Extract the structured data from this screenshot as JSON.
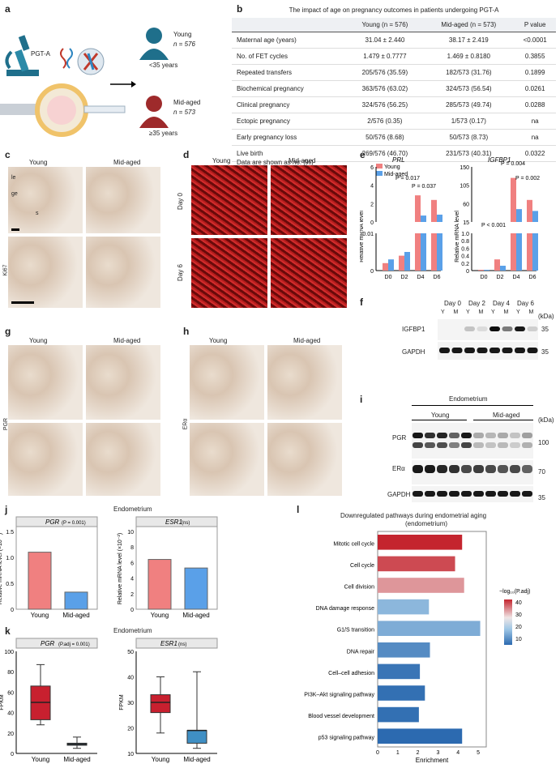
{
  "panels": {
    "a": "a",
    "b": "b",
    "c": "c",
    "d": "d",
    "e": "e",
    "f": "f",
    "g": "g",
    "h": "h",
    "i": "i",
    "j": "j",
    "k": "k",
    "l": "l"
  },
  "panel_a": {
    "method": "PGT-A",
    "young_label": "Young",
    "young_n": "n = 576",
    "young_age": "<35 years",
    "mid_label": "Mid-aged",
    "mid_n": "n = 573",
    "mid_age": "≥35 years"
  },
  "table_b": {
    "caption": "The impact of age on pregnancy outcomes in patients undergoing PGT-A",
    "headers": [
      "",
      "Young (n = 576)",
      "Mid-aged (n = 573)",
      "P value"
    ],
    "rows": [
      [
        "Maternal age (years)",
        "31.04 ± 2.440",
        "38.17 ± 2.419",
        "<0.0001"
      ],
      [
        "No. of FET cycles",
        "1.479 ± 0.7777",
        "1.469 ± 0.8180",
        "0.3855"
      ],
      [
        "Repeated transfers",
        "205/576 (35.59)",
        "182/573 (31.76)",
        "0.1899"
      ],
      [
        "Biochemical pregnancy",
        "363/576 (63.02)",
        "324/573 (56.54)",
        "0.0261"
      ],
      [
        "Clinical pregnancy",
        "324/576 (56.25)",
        "285/573 (49.74)",
        "0.0288"
      ],
      [
        "Ectopic pregnancy",
        "2/576 (0.35)",
        "1/573 (0.17)",
        "na"
      ],
      [
        "Early pregnancy loss",
        "50/576 (8.68)",
        "50/573 (8.73)",
        "na"
      ],
      [
        "Live birth",
        "269/576 (46.70)",
        "231/573 (40.31)",
        "0.0322"
      ]
    ],
    "footnote": "Data are shown as no. (%)"
  },
  "micro": {
    "young": "Young",
    "mid": "Mid-aged",
    "ki67": "Ki67",
    "pgr": "PGR",
    "era": "ERα",
    "le": "le",
    "ge": "ge",
    "s": "s",
    "day0": "Day 0",
    "day6": "Day 6"
  },
  "panel_e": {
    "prl_title": "PRL",
    "igf_title": "IGFBP1",
    "ylabel": "Relative mRNA level",
    "legend_young": "Young",
    "legend_mid": "Mid-aged",
    "x": [
      "D0",
      "D2",
      "D4",
      "D6"
    ],
    "prl_p1": "P = 0.017",
    "prl_p2": "P = 0.037",
    "igf_p1": "P < 0.001",
    "igf_p2": "P = 0.004",
    "igf_p3": "P = 0.002",
    "prl_ticks_top": [
      "6",
      "4",
      "2",
      "0"
    ],
    "prl_ticks_bottom": [
      "0.01",
      "0"
    ],
    "igf_ticks_top": [
      "150",
      "105",
      "60",
      "15"
    ],
    "igf_ticks_bottom": [
      "1.0",
      "0.8",
      "0.6",
      "0.4",
      "0.2",
      "0"
    ]
  },
  "panel_f": {
    "days": [
      "Day 0",
      "Day 2",
      "Day 4",
      "Day 6"
    ],
    "lanes": [
      "Y",
      "M",
      "Y",
      "M",
      "Y",
      "M",
      "Y",
      "M"
    ],
    "kda": "(kDa)",
    "rows": [
      "IGFBP1",
      "GAPDH"
    ],
    "markers": [
      "35",
      "35"
    ]
  },
  "panel_i": {
    "title": "Endometrium",
    "young": "Young",
    "mid": "Mid-aged",
    "kda": "(kDa)",
    "rows": [
      "PGR",
      "ERα",
      "GAPDH"
    ],
    "markers": [
      "100",
      "70",
      "35"
    ]
  },
  "panel_j": {
    "title": "Endometrium",
    "pgr_title": "PGR",
    "pgr_p": "(P = 0.001)",
    "esr_title": "ESR1",
    "esr_p": "(ns)",
    "ylabel_pgr": "Relative mRNA level (×10⁻¹)",
    "ylabel_esr": "Relative mRNA level (×10⁻²)",
    "x": [
      "Young",
      "Mid-aged"
    ],
    "pgr_ticks": [
      "1.5",
      "1.0",
      "0.5",
      "0"
    ],
    "esr_ticks": [
      "10",
      "8",
      "6",
      "4",
      "2",
      "0"
    ]
  },
  "panel_k": {
    "title": "Endometrium",
    "pgr_title": "PGR",
    "pgr_p": "(P.adj = 0.001)",
    "esr_title": "ESR1",
    "esr_p": "(ns)",
    "ylabel": "FPKM",
    "x": [
      "Young",
      "Mid-aged"
    ],
    "pgr_ticks": [
      "100",
      "80",
      "60",
      "40",
      "20",
      "0"
    ],
    "esr_ticks": [
      "50",
      "40",
      "30",
      "20",
      "10"
    ]
  },
  "chart_data": [
    {
      "type": "bar",
      "title": "PRL",
      "ylabel": "Relative mRNA level",
      "categories": [
        "D0",
        "D2",
        "D4",
        "D6"
      ],
      "series": [
        {
          "name": "Young",
          "values": [
            0.002,
            0.004,
            2.9,
            2.4
          ]
        },
        {
          "name": "Mid-aged",
          "values": [
            0.003,
            0.005,
            0.7,
            0.8
          ]
        }
      ]
    },
    {
      "type": "bar",
      "title": "IGFBP1",
      "ylabel": "Relative mRNA level",
      "categories": [
        "D0",
        "D2",
        "D4",
        "D6"
      ],
      "series": [
        {
          "name": "Young",
          "values": [
            0.01,
            0.3,
            120,
            60
          ]
        },
        {
          "name": "Mid-aged",
          "values": [
            0.01,
            0.13,
            35,
            30
          ]
        }
      ]
    },
    {
      "type": "bar",
      "title": "PGR",
      "ylabel": "Relative mRNA level (×10⁻¹)",
      "categories": [
        "Young",
        "Mid-aged"
      ],
      "values": [
        1.1,
        0.33
      ],
      "ylim": [
        0,
        1.5
      ]
    },
    {
      "type": "bar",
      "title": "ESR1",
      "ylabel": "Relative mRNA level (×10⁻²)",
      "categories": [
        "Young",
        "Mid-aged"
      ],
      "values": [
        6.4,
        5.3
      ],
      "ylim": [
        0,
        10
      ]
    },
    {
      "type": "box",
      "title": "PGR",
      "ylabel": "FPKM",
      "categories": [
        "Young",
        "Mid-aged"
      ],
      "boxes": [
        {
          "min": 28,
          "q1": 33,
          "median": 50,
          "q3": 66,
          "max": 87
        },
        {
          "min": 5,
          "q1": 8,
          "median": 9,
          "q3": 10,
          "max": 16
        }
      ],
      "ylim": [
        0,
        100
      ]
    },
    {
      "type": "box",
      "title": "ESR1",
      "ylabel": "FPKM",
      "categories": [
        "Young",
        "Mid-aged"
      ],
      "boxes": [
        {
          "min": 18,
          "q1": 26,
          "median": 30,
          "q3": 33,
          "max": 40
        },
        {
          "min": 12,
          "q1": 14,
          "median": 19,
          "q3": 19,
          "max": 42
        }
      ],
      "ylim": [
        10,
        50
      ]
    },
    {
      "type": "bar",
      "title": "Downregulated pathways during endometrial aging (endometrium)",
      "xlabel": "Enrichment",
      "categories": [
        "Mitotic cell cycle",
        "Cell cycle",
        "Cell division",
        "DNA damage response",
        "G1/S transition",
        "DNA repair",
        "Cell–cell adhesion",
        "PI3K–Akt signaling pathway",
        "Blood vessel development",
        "p53 signaling pathway"
      ],
      "values": [
        4.2,
        3.85,
        4.3,
        2.55,
        5.1,
        2.6,
        2.1,
        2.35,
        2.05,
        4.2
      ],
      "color_values": [
        40,
        38,
        34,
        20,
        18,
        12,
        8,
        7,
        7,
        6
      ],
      "xlim": [
        0,
        5.4
      ],
      "legend_title": "−log10(P.adj)",
      "legend_ticks": [
        "40",
        "30",
        "20",
        "10"
      ]
    }
  ],
  "panel_l": {
    "title1": "Downregulated pathways during endometrial aging",
    "title2": "(endometrium)",
    "xlabel": "Enrichment",
    "xticks": [
      "0",
      "1",
      "2",
      "3",
      "4",
      "5"
    ],
    "legend_title": "−log₁₀(P.adj)"
  },
  "colors": {
    "young": "#f08080",
    "mid": "#5aa0e8",
    "box_young": "#c8202f",
    "box_mid": "#3f8fc4"
  }
}
